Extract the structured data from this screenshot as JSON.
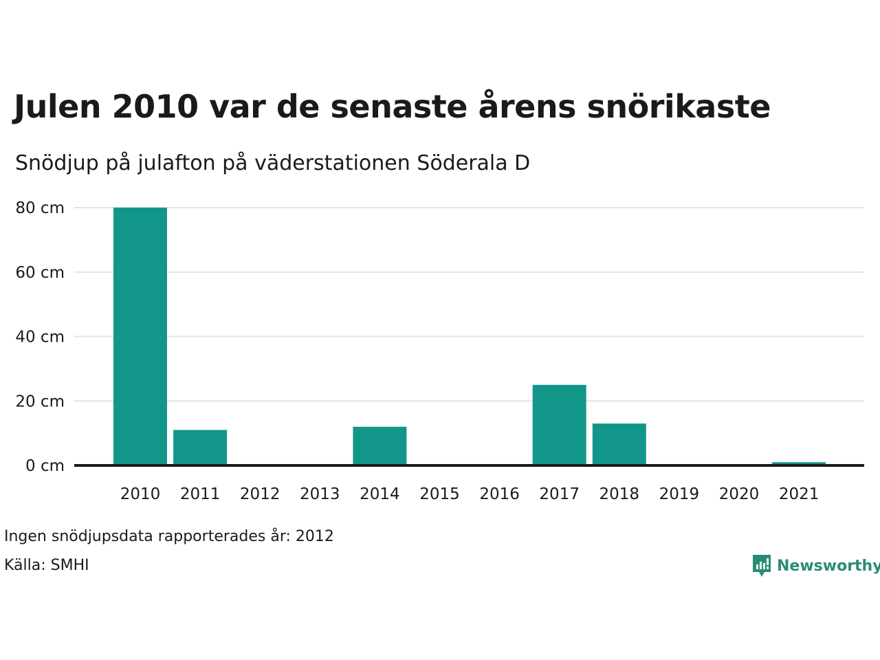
{
  "title": "Julen 2010 var de senaste årens snörikaste",
  "subtitle": "Snödjup på julafton på väderstationen Söderala D",
  "notes": {
    "missing": "Ingen snödjupsdata rapporterades år: 2012",
    "source": "Källa: SMHI"
  },
  "brand": {
    "name": "Newsworthy",
    "color": "#2a8c77",
    "icon": "newsworthy-logo-icon"
  },
  "colors": {
    "bar": "#13968a",
    "grid": "#e3e3e3",
    "baseline": "#1a1a1a"
  },
  "chart_data": {
    "type": "bar",
    "categories": [
      "2010",
      "2011",
      "2012",
      "2013",
      "2014",
      "2015",
      "2016",
      "2017",
      "2018",
      "2019",
      "2020",
      "2021"
    ],
    "values": [
      80,
      11,
      0,
      0,
      12,
      0,
      0,
      25,
      13,
      0,
      0,
      1
    ],
    "ylim": [
      0,
      80
    ],
    "yticks": [
      0,
      20,
      40,
      60,
      80
    ],
    "ytick_labels": [
      "0 cm",
      "20 cm",
      "40 cm",
      "60 cm",
      "80 cm"
    ],
    "grid": true,
    "legend": "none"
  }
}
